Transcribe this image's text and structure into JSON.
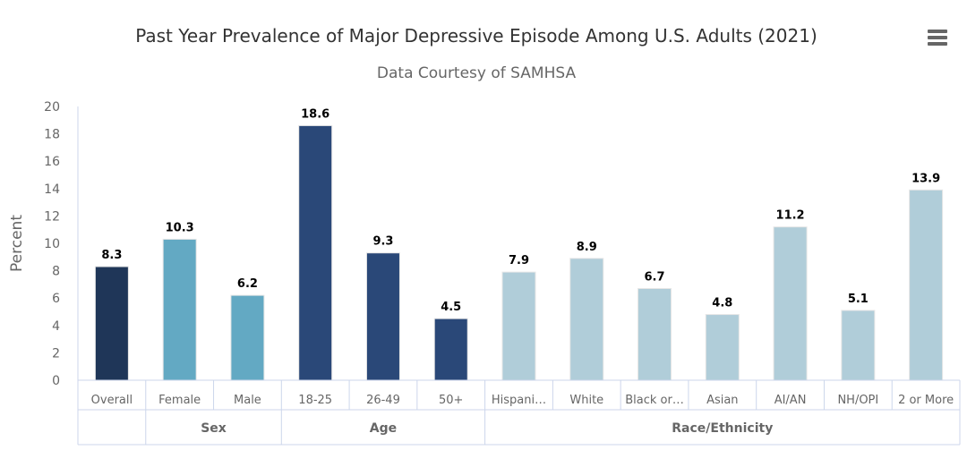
{
  "chart_data": {
    "type": "bar",
    "title": "Past Year Prevalence of Major Depressive Episode Among U.S. Adults (2021)",
    "subtitle": "Data Courtesy of SAMHSA",
    "ylabel": "Percent",
    "ylim": [
      0,
      20
    ],
    "yticks": [
      "0",
      "2",
      "4",
      "6",
      "8",
      "10",
      "12",
      "14",
      "16",
      "18",
      "20"
    ],
    "grid": false,
    "categories": [
      "Overall",
      "Female",
      "Male",
      "18-25",
      "26-49",
      "50+",
      "Hispani…",
      "White",
      "Black or…",
      "Asian",
      "AI/AN",
      "NH/OPI",
      "2 or More"
    ],
    "values": [
      8.3,
      10.3,
      6.2,
      18.6,
      9.3,
      4.5,
      7.9,
      8.9,
      6.7,
      4.8,
      11.2,
      5.1,
      13.9
    ],
    "data_labels": [
      "8.3",
      "10.3",
      "6.2",
      "18.6",
      "9.3",
      "4.5",
      "7.9",
      "8.9",
      "6.7",
      "4.8",
      "11.2",
      "5.1",
      "13.9"
    ],
    "groups": [
      {
        "label": "",
        "count": 1,
        "color": "#1f3658"
      },
      {
        "label": "Sex",
        "count": 2,
        "color": "#63a9c3"
      },
      {
        "label": "Age",
        "count": 3,
        "color": "#2a4878"
      },
      {
        "label": "Race/Ethnicity",
        "count": 7,
        "color": "#b0cdd9"
      }
    ]
  },
  "menu_icon": "hamburger-menu-icon"
}
